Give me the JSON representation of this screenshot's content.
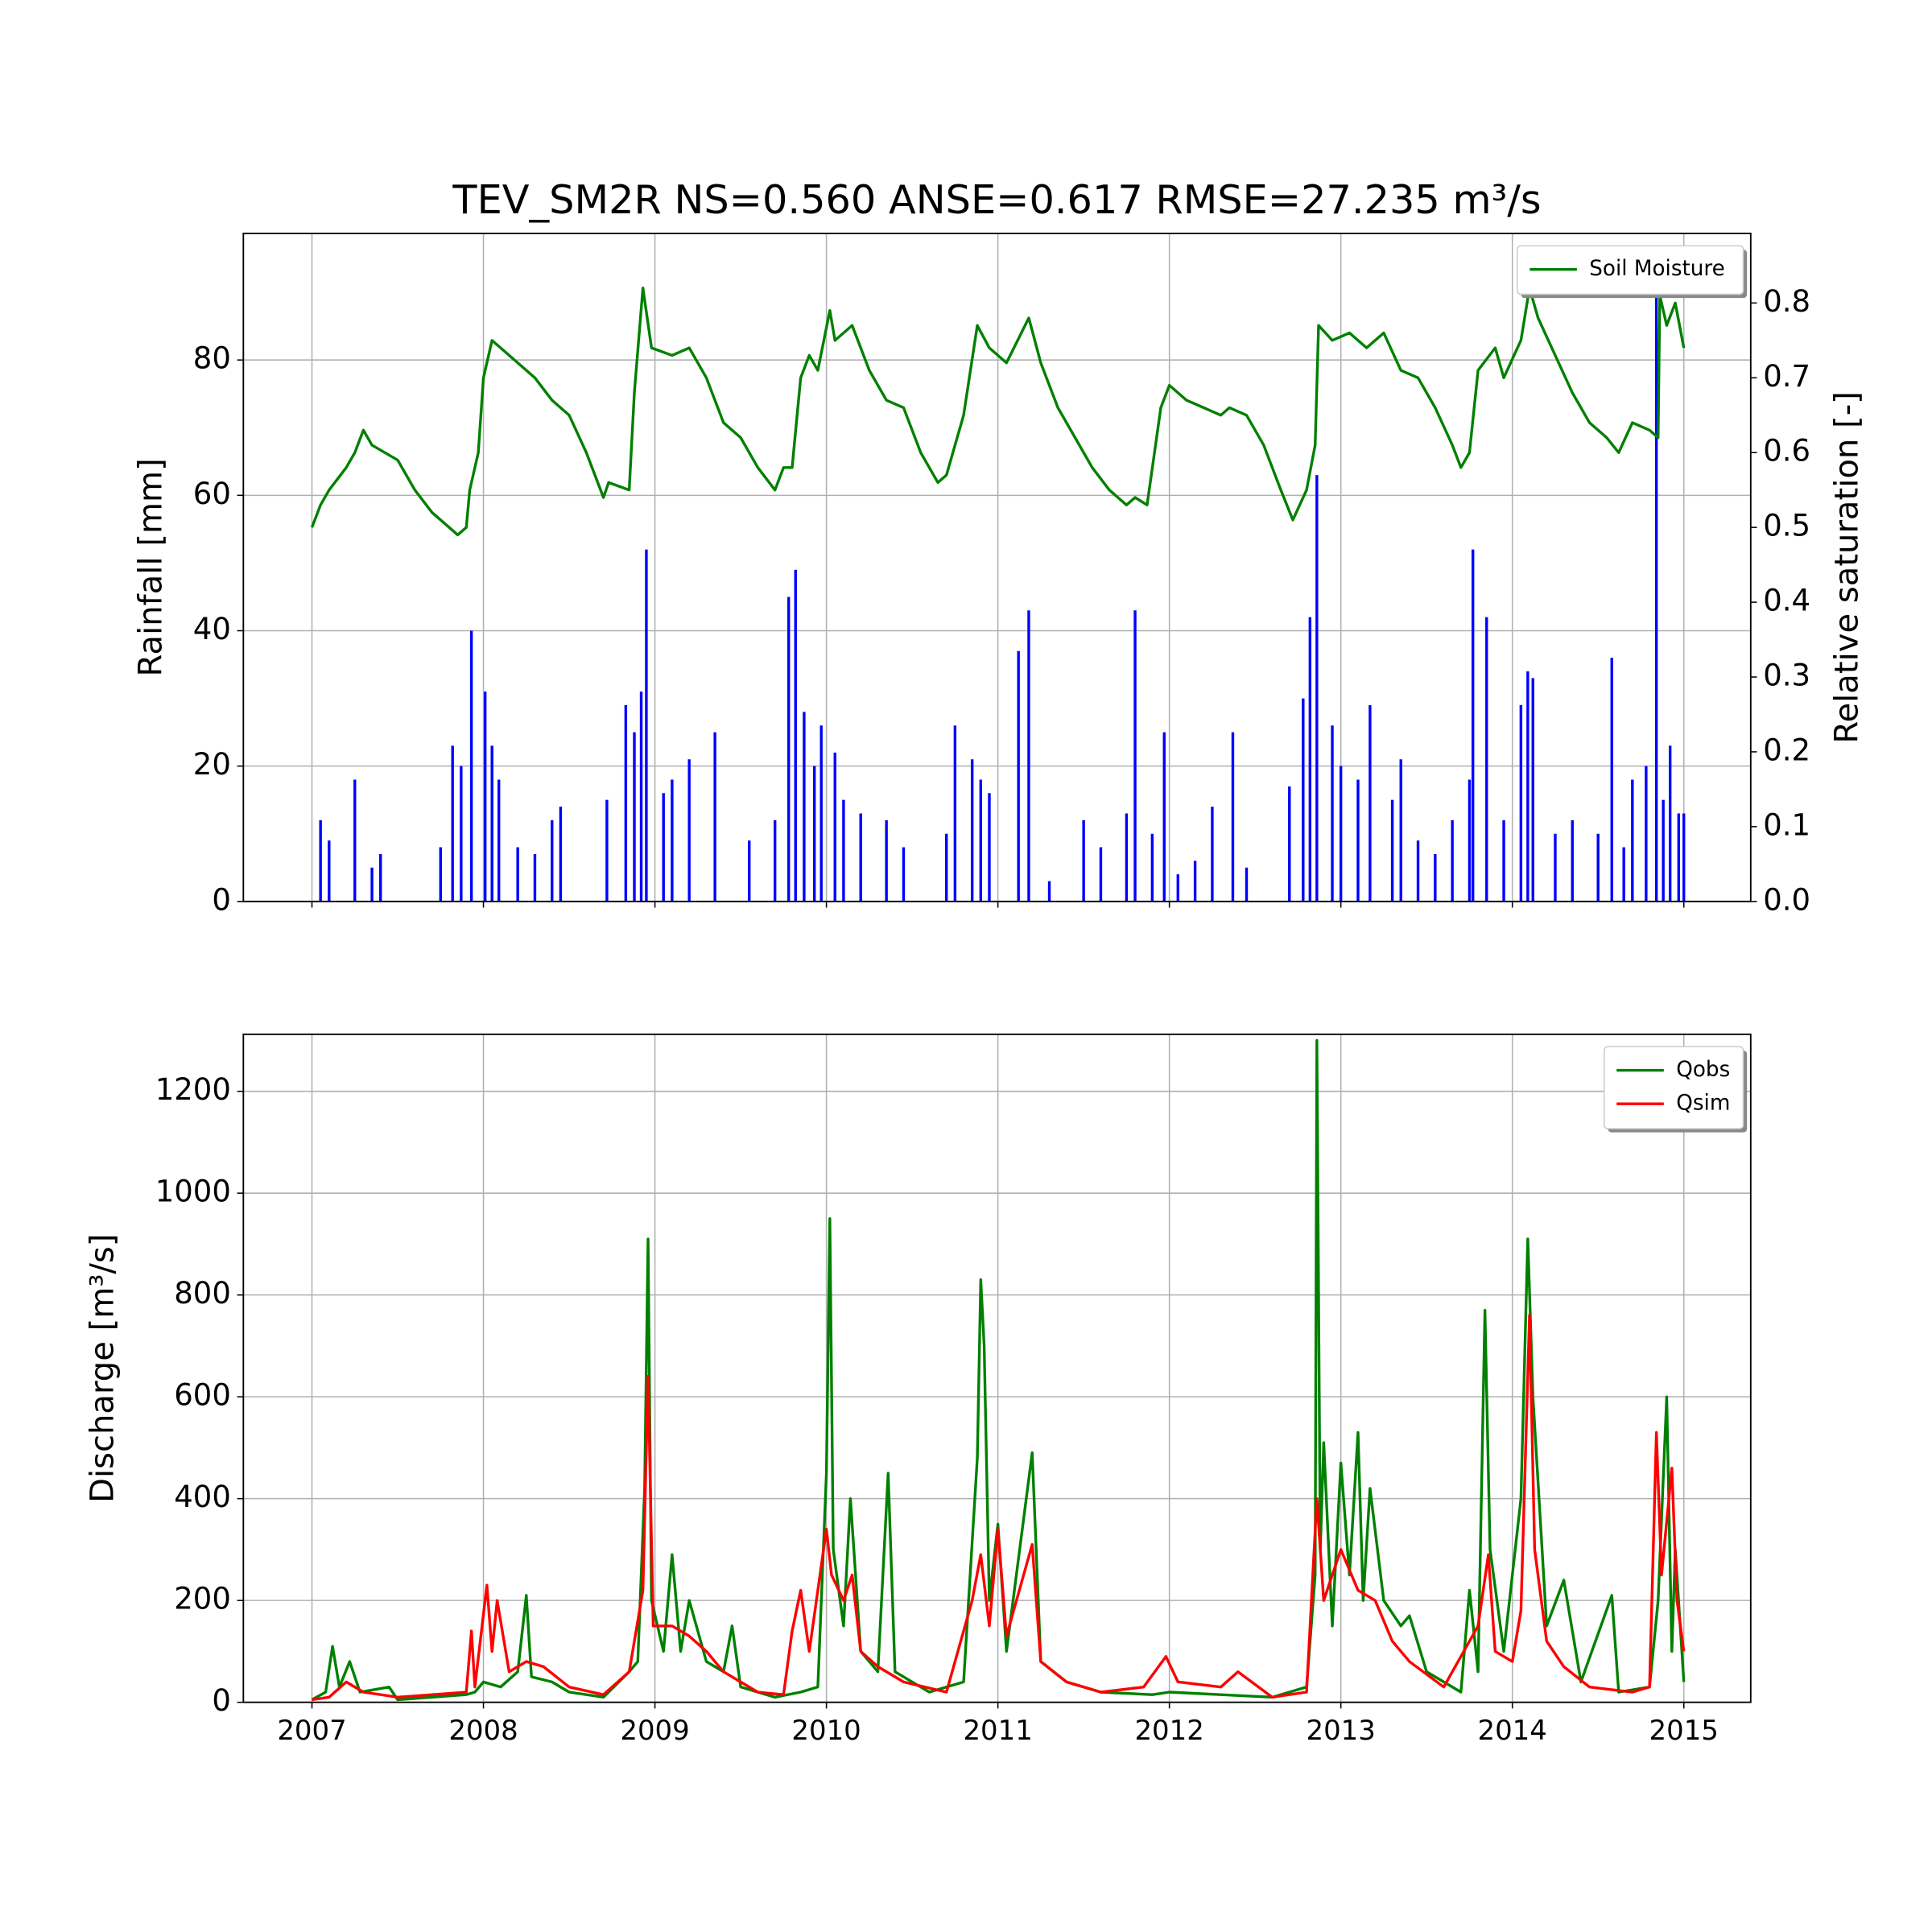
{
  "chart_data": [
    {
      "type": "line",
      "title": "TEV_SM2R NS=0.560 ANSE=0.617 RMSE=27.235 m³/s",
      "ylabel": "Rainfall [mm]",
      "y2label": "Relative saturation [-]",
      "xlim": [
        2006.6,
        2015.39
      ],
      "xticks": [
        2007,
        2008,
        2009,
        2010,
        2011,
        2012,
        2013,
        2014,
        2015
      ],
      "ylim": [
        0,
        98.7
      ],
      "yticks": [
        0,
        20,
        40,
        60,
        80
      ],
      "y2lim": [
        0,
        0.893
      ],
      "y2ticks": [
        {
          "value": 0,
          "label": "0.0"
        },
        0.1,
        0.2,
        0.3,
        0.4,
        0.5,
        0.6,
        0.7,
        0.8
      ],
      "grid": true,
      "legend": "upper right",
      "series": [
        {
          "type": "bar",
          "color": "#0000ff",
          "x": [
            2007.05,
            2007.1,
            2007.25,
            2007.35,
            2007.4,
            2007.75,
            2007.82,
            2007.87,
            2007.93,
            2008.01,
            2008.05,
            2008.09,
            2008.2,
            2008.3,
            2008.4,
            2008.45,
            2008.72,
            2008.83,
            2008.88,
            2008.92,
            2008.95,
            2009.05,
            2009.1,
            2009.2,
            2009.35,
            2009.55,
            2009.7,
            2009.78,
            2009.82,
            2009.87,
            2009.93,
            2009.97,
            2010.05,
            2010.1,
            2010.2,
            2010.35,
            2010.45,
            2010.7,
            2010.75,
            2010.85,
            2010.9,
            2010.95,
            2011.12,
            2011.18,
            2011.3,
            2011.5,
            2011.6,
            2011.75,
            2011.8,
            2011.9,
            2011.97,
            2012.05,
            2012.15,
            2012.25,
            2012.37,
            2012.45,
            2012.7,
            2012.78,
            2012.82,
            2012.86,
            2012.95,
            2013.0,
            2013.1,
            2013.17,
            2013.3,
            2013.35,
            2013.45,
            2013.55,
            2013.65,
            2013.75,
            2013.77,
            2013.85,
            2013.95,
            2014.05,
            2014.09,
            2014.12,
            2014.25,
            2014.35,
            2014.5,
            2014.58,
            2014.65,
            2014.7,
            2014.78,
            2014.84,
            2014.88,
            2014.92,
            2014.97,
            2015.0
          ],
          "values": [
            12,
            9,
            18,
            5,
            7,
            8,
            23,
            20,
            40,
            31,
            23,
            18,
            8,
            7,
            12,
            14,
            15,
            29,
            25,
            31,
            52,
            16,
            18,
            21,
            25,
            9,
            12,
            45,
            49,
            28,
            20,
            26,
            22,
            15,
            13,
            12,
            8,
            10,
            26,
            21,
            18,
            16,
            37,
            43,
            3,
            12,
            8,
            13,
            43,
            10,
            25,
            4,
            6,
            14,
            25,
            5,
            17,
            30,
            42,
            63,
            26,
            20,
            18,
            29,
            15,
            21,
            9,
            7,
            12,
            18,
            52,
            42,
            12,
            29,
            34,
            33,
            10,
            12,
            10,
            36,
            8,
            18,
            20,
            90,
            15,
            23,
            13,
            13
          ]
        },
        {
          "type": "line",
          "name": "Soil Moisture",
          "color": "#008000",
          "axis": "y2",
          "x": [
            2007.0,
            2007.05,
            2007.1,
            2007.2,
            2007.25,
            2007.3,
            2007.35,
            2007.5,
            2007.6,
            2007.7,
            2007.85,
            2007.9,
            2007.92,
            2007.97,
            2008.0,
            2008.05,
            2008.1,
            2008.2,
            2008.3,
            2008.4,
            2008.5,
            2008.6,
            2008.7,
            2008.73,
            2008.85,
            2008.88,
            2008.93,
            2008.98,
            2009.1,
            2009.2,
            2009.3,
            2009.4,
            2009.5,
            2009.6,
            2009.7,
            2009.75,
            2009.8,
            2009.85,
            2009.9,
            2009.95,
            2010.02,
            2010.05,
            2010.15,
            2010.25,
            2010.35,
            2010.45,
            2010.55,
            2010.65,
            2010.7,
            2010.8,
            2010.88,
            2010.95,
            2011.05,
            2011.18,
            2011.25,
            2011.35,
            2011.45,
            2011.55,
            2011.65,
            2011.75,
            2011.8,
            2011.87,
            2011.95,
            2012.0,
            2012.1,
            2012.2,
            2012.3,
            2012.35,
            2012.45,
            2012.55,
            2012.65,
            2012.72,
            2012.8,
            2012.85,
            2012.87,
            2012.95,
            2013.05,
            2013.15,
            2013.25,
            2013.35,
            2013.45,
            2013.55,
            2013.65,
            2013.7,
            2013.75,
            2013.8,
            2013.9,
            2013.95,
            2014.05,
            2014.1,
            2014.15,
            2014.25,
            2014.35,
            2014.45,
            2014.55,
            2014.62,
            2014.7,
            2014.8,
            2014.85,
            2014.86,
            2014.9,
            2014.95,
            2015.0
          ],
          "values": [
            0.5,
            0.53,
            0.55,
            0.58,
            0.6,
            0.63,
            0.61,
            0.59,
            0.55,
            0.52,
            0.49,
            0.5,
            0.55,
            0.6,
            0.7,
            0.75,
            0.74,
            0.72,
            0.7,
            0.67,
            0.65,
            0.6,
            0.54,
            0.56,
            0.55,
            0.68,
            0.82,
            0.74,
            0.73,
            0.74,
            0.7,
            0.64,
            0.62,
            0.58,
            0.55,
            0.58,
            0.58,
            0.7,
            0.73,
            0.71,
            0.79,
            0.75,
            0.77,
            0.71,
            0.67,
            0.66,
            0.6,
            0.56,
            0.57,
            0.65,
            0.77,
            0.74,
            0.72,
            0.78,
            0.72,
            0.66,
            0.62,
            0.58,
            0.55,
            0.53,
            0.54,
            0.53,
            0.66,
            0.69,
            0.67,
            0.66,
            0.65,
            0.66,
            0.65,
            0.61,
            0.55,
            0.51,
            0.55,
            0.61,
            0.77,
            0.75,
            0.76,
            0.74,
            0.76,
            0.71,
            0.7,
            0.66,
            0.61,
            0.58,
            0.6,
            0.71,
            0.74,
            0.7,
            0.75,
            0.82,
            0.78,
            0.73,
            0.68,
            0.64,
            0.62,
            0.6,
            0.64,
            0.63,
            0.62,
            0.81,
            0.77,
            0.8,
            0.74
          ]
        }
      ]
    },
    {
      "type": "line",
      "ylabel": "Discharge [m³/s]",
      "xlim": [
        2006.6,
        2015.39
      ],
      "xticks": [
        2007,
        2008,
        2009,
        2010,
        2011,
        2012,
        2013,
        2014,
        2015
      ],
      "ylim": [
        0,
        1312
      ],
      "yticks": [
        0,
        200,
        400,
        600,
        800,
        1000,
        1200
      ],
      "grid": true,
      "legend": "upper right",
      "series": [
        {
          "type": "line",
          "name": "Qobs",
          "color": "#008000",
          "x": [
            2007.0,
            2007.08,
            2007.12,
            2007.16,
            2007.22,
            2007.28,
            2007.45,
            2007.5,
            2007.9,
            2007.95,
            2008.0,
            2008.1,
            2008.2,
            2008.25,
            2008.28,
            2008.4,
            2008.5,
            2008.7,
            2008.85,
            2008.9,
            2008.94,
            2008.96,
            2008.98,
            2009.05,
            2009.1,
            2009.15,
            2009.2,
            2009.3,
            2009.4,
            2009.45,
            2009.5,
            2009.7,
            2009.85,
            2009.95,
            2010.0,
            2010.02,
            2010.04,
            2010.1,
            2010.14,
            2010.2,
            2010.3,
            2010.36,
            2010.4,
            2010.6,
            2010.8,
            2010.88,
            2010.9,
            2010.92,
            2010.95,
            2011.0,
            2011.05,
            2011.2,
            2011.25,
            2011.4,
            2011.6,
            2011.9,
            2012.0,
            2012.3,
            2012.6,
            2012.8,
            2012.85,
            2012.86,
            2012.88,
            2012.9,
            2012.95,
            2013.0,
            2013.05,
            2013.1,
            2013.13,
            2013.17,
            2013.25,
            2013.35,
            2013.4,
            2013.5,
            2013.7,
            2013.75,
            2013.8,
            2013.84,
            2013.87,
            2013.95,
            2014.05,
            2014.09,
            2014.12,
            2014.2,
            2014.3,
            2014.4,
            2014.58,
            2014.62,
            2014.8,
            2014.85,
            2014.9,
            2014.93,
            2014.95,
            2015.0
          ],
          "values": [
            5,
            20,
            110,
            30,
            80,
            20,
            30,
            5,
            15,
            20,
            40,
            30,
            60,
            210,
            50,
            40,
            20,
            10,
            60,
            80,
            420,
            910,
            200,
            100,
            290,
            100,
            200,
            80,
            60,
            150,
            30,
            10,
            20,
            30,
            450,
            950,
            300,
            150,
            400,
            100,
            60,
            450,
            60,
            20,
            40,
            480,
            830,
            700,
            200,
            350,
            100,
            490,
            80,
            40,
            20,
            15,
            20,
            15,
            10,
            30,
            250,
            1300,
            300,
            510,
            150,
            470,
            250,
            530,
            200,
            420,
            200,
            150,
            170,
            60,
            20,
            220,
            60,
            770,
            300,
            100,
            400,
            910,
            600,
            150,
            240,
            40,
            210,
            20,
            30,
            200,
            600,
            100,
            300,
            40
          ]
        },
        {
          "type": "line",
          "name": "Qsim",
          "color": "#ff0000",
          "x": [
            2007.0,
            2007.1,
            2007.2,
            2007.3,
            2007.5,
            2007.9,
            2007.93,
            2007.95,
            2008.02,
            2008.05,
            2008.08,
            2008.15,
            2008.25,
            2008.35,
            2008.5,
            2008.7,
            2008.85,
            2008.93,
            2008.96,
            2008.99,
            2009.1,
            2009.2,
            2009.3,
            2009.4,
            2009.6,
            2009.75,
            2009.8,
            2009.85,
            2009.9,
            2010.0,
            2010.03,
            2010.1,
            2010.15,
            2010.2,
            2010.3,
            2010.45,
            2010.7,
            2010.85,
            2010.9,
            2010.95,
            2011.0,
            2011.05,
            2011.2,
            2011.25,
            2011.4,
            2011.6,
            2011.85,
            2011.98,
            2012.05,
            2012.3,
            2012.4,
            2012.6,
            2012.8,
            2012.86,
            2012.9,
            2013.0,
            2013.1,
            2013.2,
            2013.3,
            2013.4,
            2013.6,
            2013.8,
            2013.86,
            2013.9,
            2014.0,
            2014.05,
            2014.1,
            2014.13,
            2014.2,
            2014.3,
            2014.45,
            2014.7,
            2014.8,
            2014.84,
            2014.87,
            2014.93,
            2014.96,
            2015.0
          ],
          "values": [
            5,
            10,
            40,
            20,
            10,
            20,
            140,
            30,
            230,
            100,
            200,
            60,
            80,
            70,
            30,
            15,
            60,
            220,
            640,
            150,
            150,
            130,
            100,
            60,
            20,
            15,
            140,
            220,
            100,
            340,
            250,
            200,
            250,
            100,
            70,
            40,
            20,
            200,
            290,
            150,
            340,
            130,
            310,
            80,
            40,
            20,
            30,
            90,
            40,
            30,
            60,
            10,
            20,
            400,
            200,
            300,
            220,
            200,
            120,
            80,
            30,
            150,
            290,
            100,
            80,
            180,
            760,
            300,
            120,
            70,
            30,
            20,
            30,
            530,
            250,
            460,
            200,
            100
          ]
        }
      ]
    }
  ]
}
